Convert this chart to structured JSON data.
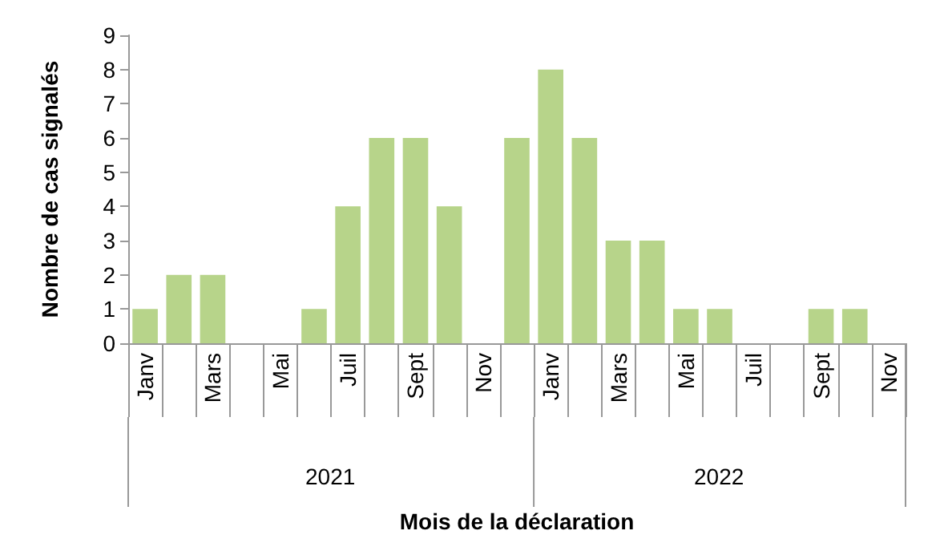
{
  "chart_data": {
    "type": "bar",
    "xlabel": "Mois de la déclaration",
    "ylabel": "Nombre de cas signalés",
    "categories": [
      "Janv",
      null,
      "Mars",
      null,
      "Mai",
      null,
      "Juil",
      null,
      "Sept",
      null,
      "Nov",
      null,
      "Janv",
      null,
      "Mars",
      null,
      "Mai",
      null,
      "Juil",
      null,
      "Sept",
      null,
      "Nov"
    ],
    "values": [
      1,
      2,
      2,
      0,
      0,
      1,
      4,
      6,
      6,
      4,
      0,
      6,
      8,
      6,
      3,
      3,
      1,
      1,
      0,
      0,
      1,
      1,
      0
    ],
    "color": "#b7d48a",
    "ylim": [
      0,
      9
    ],
    "yticks": [
      0,
      1,
      2,
      3,
      4,
      5,
      6,
      7,
      8,
      9
    ],
    "grid": false,
    "annotations": [
      "2021",
      "2022"
    ]
  }
}
